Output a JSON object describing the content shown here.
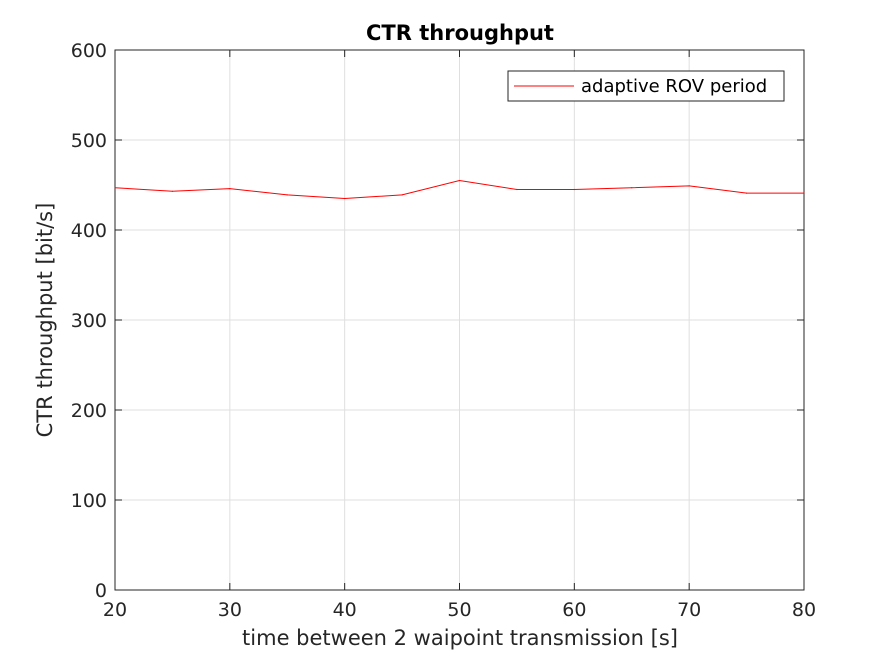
{
  "chart_data": {
    "type": "line",
    "title": "CTR throughput",
    "xlabel": "time between 2 waipoint transmission [s]",
    "ylabel": "CTR throughput [bit/s]",
    "xlim": [
      20,
      80
    ],
    "ylim": [
      0,
      600
    ],
    "xticks": [
      20,
      30,
      40,
      50,
      60,
      70,
      80
    ],
    "yticks": [
      0,
      100,
      200,
      300,
      400,
      500,
      600
    ],
    "grid": true,
    "legend_position": "top-right",
    "series": [
      {
        "name": "adaptive ROV period",
        "color": "#ff0000",
        "x": [
          20,
          25,
          30,
          35,
          40,
          45,
          50,
          55,
          60,
          65,
          70,
          75,
          80
        ],
        "y": [
          447,
          443,
          446,
          439,
          435,
          439,
          455,
          445,
          445,
          447,
          449,
          441,
          441
        ]
      }
    ]
  }
}
